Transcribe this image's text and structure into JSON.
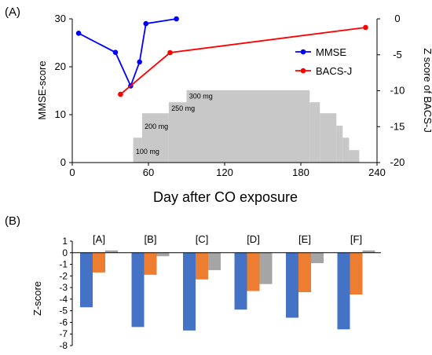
{
  "chart_data": [
    {
      "type": "line",
      "panel_label": "(A)",
      "xlabel": "Day after CO exposure",
      "ylabel_left": "MMSE-score",
      "ylabel_right": "Z score of BACS-J",
      "xlim": [
        0,
        240
      ],
      "xticks": [
        "0",
        "60",
        "120",
        "180",
        "240"
      ],
      "ylim_left": [
        0,
        30
      ],
      "yticks_left": [
        "0",
        "10",
        "20",
        "30"
      ],
      "ylim_right": [
        -20,
        0
      ],
      "yticks_right": [
        "0",
        "-5",
        "-10",
        "-15",
        "-20"
      ],
      "legend_position": "right",
      "series": [
        {
          "name": "MMSE",
          "axis": "left",
          "color": "#0000ff",
          "x": [
            5,
            34,
            46,
            53,
            58,
            82
          ],
          "y": [
            27,
            23,
            16,
            21,
            29,
            30
          ]
        },
        {
          "name": "BACS-J",
          "axis": "right",
          "color": "#ff0000",
          "x": [
            38,
            77,
            231
          ],
          "y": [
            -10.5,
            -4.7,
            -1.2
          ]
        }
      ],
      "dose_steps": {
        "color": "#c8c8c8",
        "labels": [
          "100 mg",
          "200 mg",
          "250 mg",
          "300 mg"
        ],
        "steps": [
          {
            "x0": 48,
            "x1": 55,
            "y": 5.2
          },
          {
            "x0": 55,
            "x1": 76,
            "y": 10.3
          },
          {
            "x0": 76,
            "x1": 90,
            "y": 12.6
          },
          {
            "x0": 90,
            "x1": 187,
            "y": 15.1
          },
          {
            "x0": 187,
            "x1": 195,
            "y": 12.6
          },
          {
            "x0": 195,
            "x1": 208,
            "y": 10.3
          },
          {
            "x0": 208,
            "x1": 213,
            "y": 7.7
          },
          {
            "x0": 213,
            "x1": 218,
            "y": 5.2
          },
          {
            "x0": 218,
            "x1": 226,
            "y": 2.6
          }
        ]
      }
    },
    {
      "type": "bar",
      "panel_label": "(B)",
      "ylabel": "Z-score",
      "ylim": [
        -8,
        1
      ],
      "yticks": [
        "1",
        "0",
        "-1",
        "-2",
        "-3",
        "-4",
        "-5",
        "-6",
        "-7",
        "-8"
      ],
      "categories": [
        "[A]",
        "[B]",
        "[C]",
        "[D]",
        "[E]",
        "[F]"
      ],
      "series": [
        {
          "color": "#4472c4",
          "values": [
            -4.7,
            -6.4,
            -6.7,
            -4.9,
            -5.6,
            -6.6
          ]
        },
        {
          "color": "#ed7d31",
          "values": [
            -1.7,
            -1.9,
            -2.3,
            -3.3,
            -3.4,
            -3.6
          ]
        },
        {
          "color": "#a5a5a5",
          "values": [
            0.2,
            -0.3,
            -1.5,
            -2.7,
            -0.9,
            0.2
          ]
        }
      ]
    }
  ]
}
